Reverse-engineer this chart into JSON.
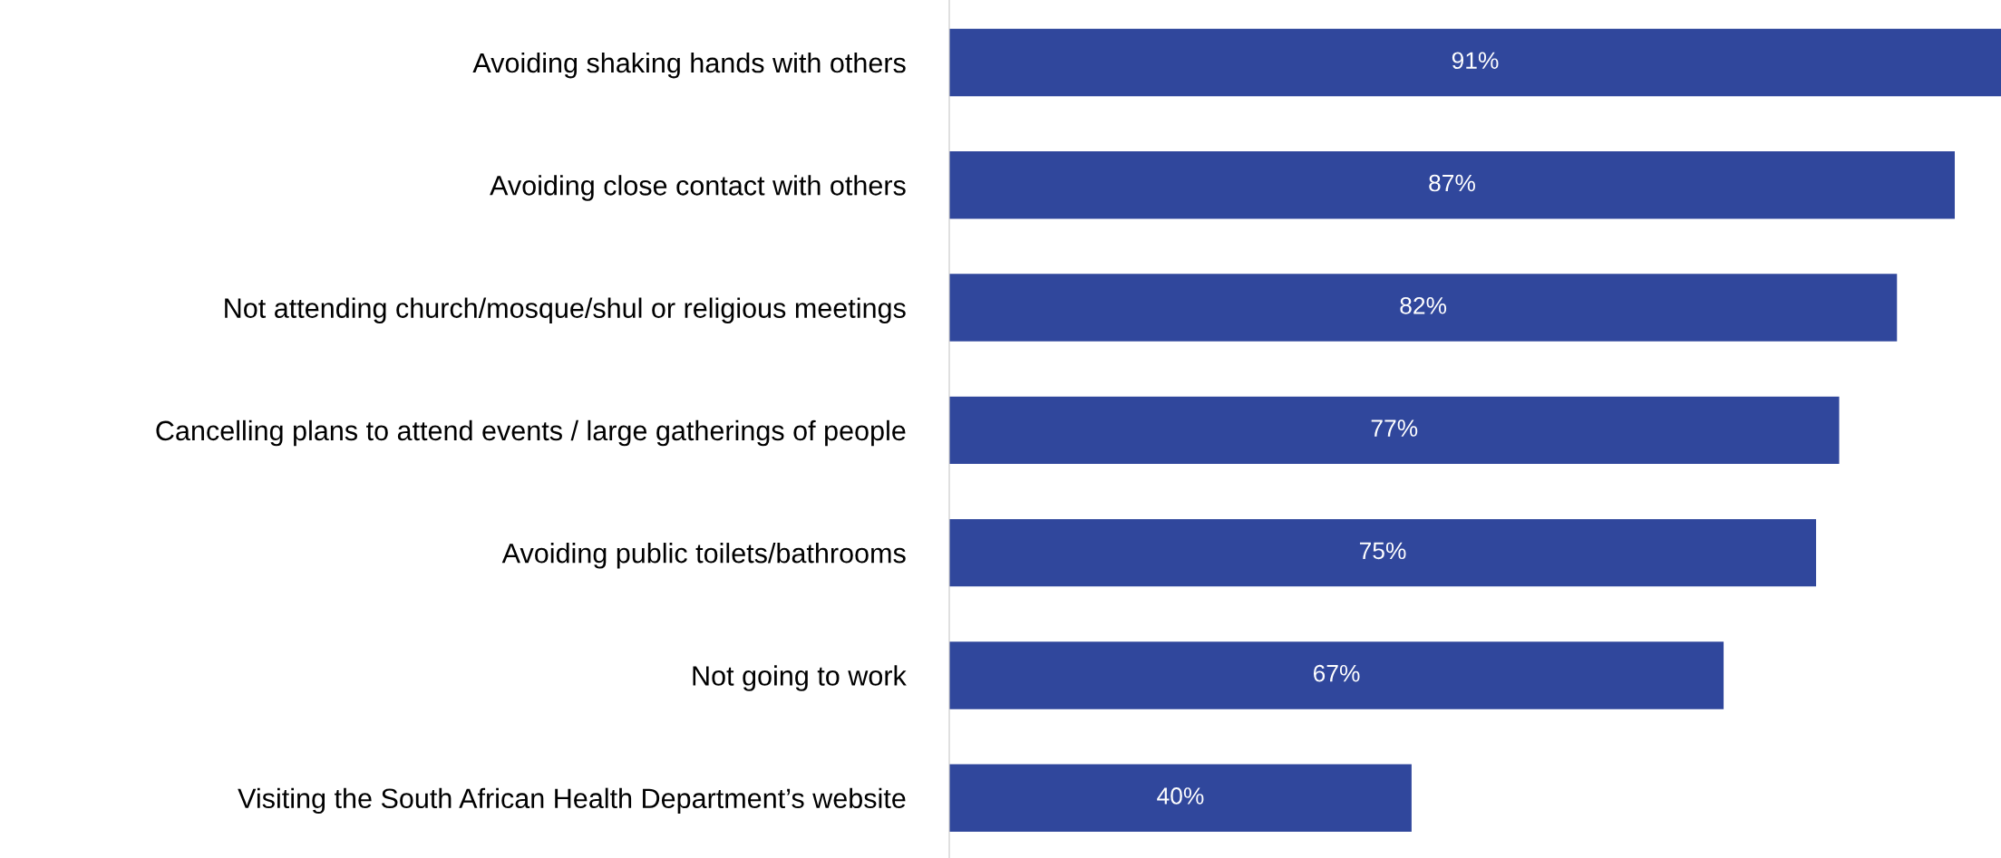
{
  "chart_data": {
    "type": "bar",
    "orientation": "horizontal",
    "categories": [
      "Avoiding shaking hands with others",
      "Avoiding close contact with others",
      "Not attending church/mosque/shul or religious meetings",
      "Cancelling plans to attend events / large gatherings of people",
      "Avoiding public toilets/bathrooms",
      "Not going to work",
      "Visiting the South African Health Department’s website"
    ],
    "values": [
      91,
      87,
      82,
      77,
      75,
      67,
      40
    ],
    "value_labels": [
      "91%",
      "87%",
      "82%",
      "77%",
      "75%",
      "67%",
      "40%"
    ],
    "color": "#30479c",
    "xlim": [
      0,
      91
    ],
    "grid": false,
    "legend": false
  }
}
